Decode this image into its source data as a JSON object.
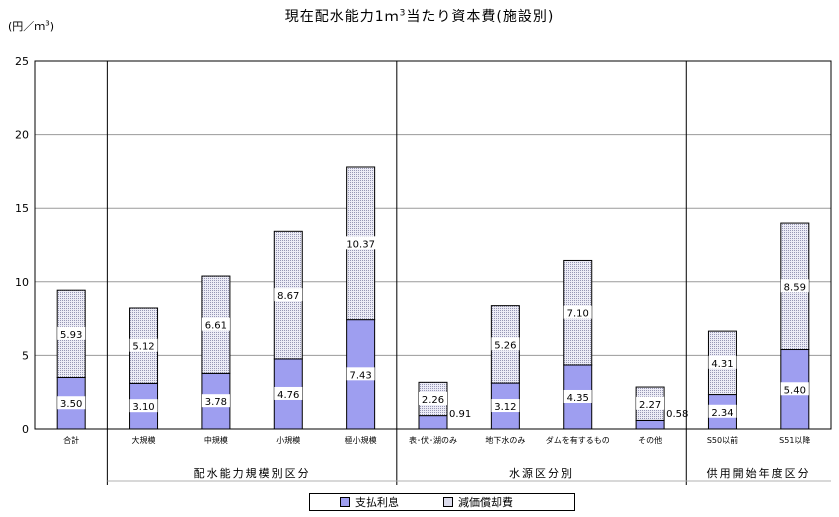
{
  "title": {
    "main": "現在配水能力1ｍ",
    "sup": "3",
    "rest": "当たり資本費(施設別)"
  },
  "unit": {
    "main": "(円／ｍ",
    "sup": "3",
    "close": ")"
  },
  "legend": {
    "interest": "支払利息",
    "depreciation": "減価償却費"
  },
  "colors": {
    "interest": "#9e9ef0",
    "depreciation": "#dcdcec"
  },
  "chart_data": {
    "type": "bar",
    "stacked": true,
    "ylim": [
      0,
      25
    ],
    "yticks": [
      "0",
      "5",
      "10",
      "15",
      "20",
      "25"
    ],
    "categories": [
      "合計",
      "大規模",
      "中規模",
      "小規模",
      "極小規模",
      "表･伏･湖のみ",
      "地下水のみ",
      "ダムを有するもの",
      "その他",
      "S50以前",
      "S51以降"
    ],
    "series": [
      {
        "name": "支払利息",
        "values": [
          3.5,
          3.1,
          3.78,
          4.76,
          7.43,
          0.91,
          3.12,
          4.35,
          0.58,
          2.34,
          5.4
        ],
        "labels": [
          "3.50",
          "3.10",
          "3.78",
          "4.76",
          "7.43",
          "0.91",
          "3.12",
          "4.35",
          "0.58",
          "2.34",
          "5.40"
        ]
      },
      {
        "name": "減価償却費",
        "values": [
          5.93,
          5.12,
          6.61,
          8.67,
          10.37,
          2.26,
          5.26,
          7.1,
          2.27,
          4.31,
          8.59
        ],
        "labels": [
          "5.93",
          "5.12",
          "6.61",
          "8.67",
          "10.37",
          "2.26",
          "5.26",
          "7.10",
          "2.27",
          "4.31",
          "8.59"
        ]
      }
    ],
    "groups": [
      {
        "label": "配水能力規模別区分",
        "start": 1,
        "end": 4
      },
      {
        "label": "水源区分別",
        "start": 5,
        "end": 8
      },
      {
        "label": "供用開始年度区分",
        "start": 9,
        "end": 10
      }
    ],
    "grid": "horizontal"
  }
}
